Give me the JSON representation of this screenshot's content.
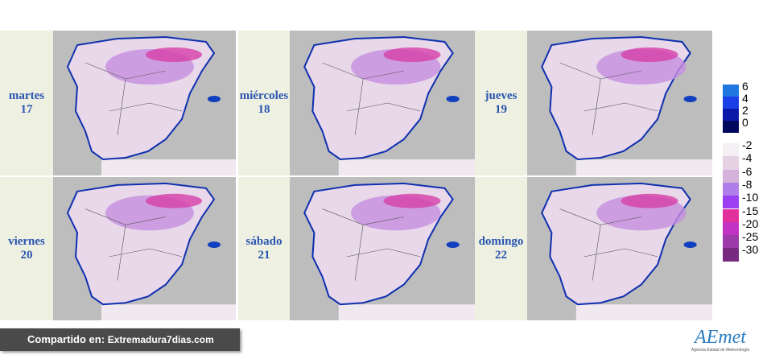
{
  "panels": [
    {
      "day": "martes",
      "date": 17
    },
    {
      "day": "miércoles",
      "date": 18
    },
    {
      "day": "jueves",
      "date": 19
    },
    {
      "day": "viernes",
      "date": 20
    },
    {
      "day": "sábado",
      "date": 21
    },
    {
      "day": "domingo",
      "date": 22
    }
  ],
  "legend": [
    {
      "label": 6,
      "color": "#1e78e0"
    },
    {
      "label": 4,
      "color": "#1a3fe6"
    },
    {
      "label": 2,
      "color": "#0a1aa8"
    },
    {
      "label": 0,
      "color": "#00085e"
    },
    {
      "label": -2,
      "color": "#f3eff3"
    },
    {
      "label": -4,
      "color": "#e4d2e4"
    },
    {
      "label": -6,
      "color": "#d4b2da"
    },
    {
      "label": -8,
      "color": "#b07ee8"
    },
    {
      "label": -10,
      "color": "#9a40f2"
    },
    {
      "label": -15,
      "color": "#e2309c"
    },
    {
      "label": -20,
      "color": "#c232c4"
    },
    {
      "label": -25,
      "color": "#9c3aaa"
    },
    {
      "label": -30,
      "color": "#762a80"
    }
  ],
  "footer": {
    "prefix": "Compartido en:",
    "site": "Extremadura7dias.com"
  },
  "logo": {
    "name": "AEmet",
    "subtitle": "Agencia Estatal de Meteorología"
  }
}
